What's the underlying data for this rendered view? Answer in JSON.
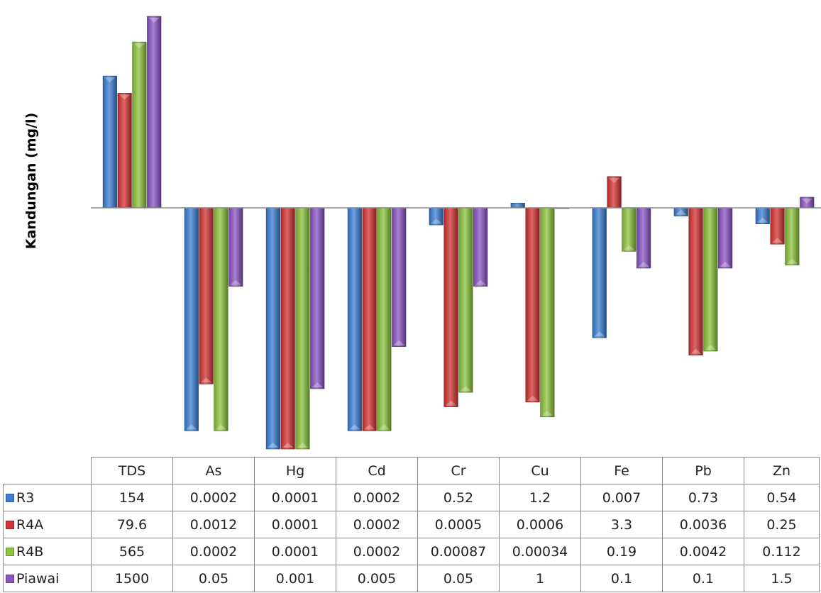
{
  "chart_data": {
    "type": "bar",
    "scale": "log",
    "categories": [
      "TDS",
      "As",
      "Hg",
      "Cd",
      "Cr",
      "Cu",
      "Fe",
      "Pb",
      "Zn"
    ],
    "ylabel": "Kandungan (mg/l)",
    "xlabel": "",
    "title": "",
    "grid": false,
    "legend": "data-table",
    "series": [
      {
        "name": "R3",
        "color": "#3a7fd5",
        "values": [
          154,
          0.0002,
          0.0001,
          0.0002,
          0.52,
          1.2,
          0.007,
          0.73,
          0.54
        ]
      },
      {
        "name": "R4A",
        "color": "#d63232",
        "values": [
          79.6,
          0.0012,
          0.0001,
          0.0002,
          0.0005,
          0.0006,
          3.3,
          0.0036,
          0.25
        ]
      },
      {
        "name": "R4B",
        "color": "#8cc43c",
        "values": [
          565,
          0.0002,
          0.0001,
          0.0002,
          0.00087,
          0.00034,
          0.19,
          0.0042,
          0.112
        ]
      },
      {
        "name": "Piawai",
        "color": "#8a54c4",
        "values": [
          1500,
          0.05,
          0.001,
          0.005,
          0.05,
          1,
          0.1,
          0.1,
          1.5
        ]
      }
    ],
    "table": {
      "rows": [
        {
          "values": [
            "154",
            "0.0002",
            "0.0001",
            "0.0002",
            "0.52",
            "1.2",
            "0.007",
            "0.73",
            "0.54"
          ]
        },
        {
          "values": [
            "79.6",
            "0.0012",
            "0.0001",
            "0.0002",
            "0.0005",
            "0.0006",
            "3.3",
            "0.0036",
            "0.25"
          ]
        },
        {
          "values": [
            "565",
            "0.0002",
            "0.0001",
            "0.0002",
            "0.00087",
            "0.00034",
            "0.19",
            "0.0042",
            "0.112"
          ]
        },
        {
          "values": [
            "1500",
            "0.05",
            "0.001",
            "0.005",
            "0.05",
            "1",
            "0.1",
            "0.1",
            "1.5"
          ]
        }
      ]
    }
  }
}
